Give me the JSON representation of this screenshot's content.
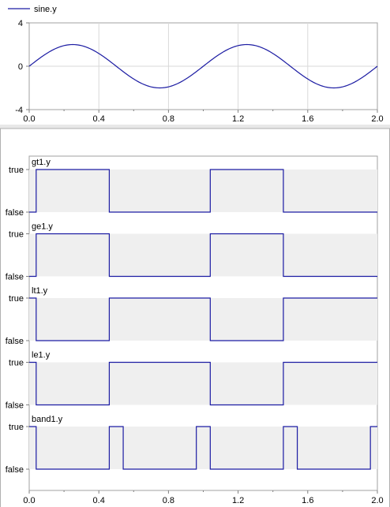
{
  "chart_data": [
    {
      "type": "line",
      "legend": {
        "placement": "top-left",
        "entries": [
          "sine.y"
        ]
      },
      "series": [
        {
          "name": "sine.y",
          "color": "#1c1ca3",
          "function": "2*sin(2*pi*t)"
        }
      ],
      "xlim": [
        0.0,
        2.0
      ],
      "ylim": [
        -4,
        4
      ],
      "xticks": [
        "0.0",
        "0.4",
        "0.8",
        "1.2",
        "1.6",
        "2.0"
      ],
      "yticks": [
        "4",
        "0",
        "-4"
      ],
      "grid": true
    },
    {
      "type": "line",
      "subtype": "boolean-step",
      "xlim": [
        0.0,
        2.0
      ],
      "xticks": [
        "0.0",
        "0.4",
        "0.8",
        "1.2",
        "1.6",
        "2.0"
      ],
      "ytick_true": "true",
      "ytick_false": "false",
      "grid": true,
      "series": [
        {
          "name": "gt1.y",
          "color": "#1c1ca3",
          "steps": [
            [
              0.0,
              0
            ],
            [
              0.04,
              1
            ],
            [
              0.46,
              0
            ],
            [
              1.04,
              1
            ],
            [
              1.46,
              0
            ],
            [
              2.0,
              0
            ]
          ]
        },
        {
          "name": "ge1.y",
          "color": "#1c1ca3",
          "steps": [
            [
              0.0,
              0
            ],
            [
              0.04,
              1
            ],
            [
              0.46,
              0
            ],
            [
              1.04,
              1
            ],
            [
              1.46,
              0
            ],
            [
              2.0,
              0
            ]
          ]
        },
        {
          "name": "lt1.y",
          "color": "#1c1ca3",
          "steps": [
            [
              0.0,
              1
            ],
            [
              0.04,
              0
            ],
            [
              0.46,
              1
            ],
            [
              1.04,
              0
            ],
            [
              1.46,
              1
            ],
            [
              2.0,
              1
            ]
          ]
        },
        {
          "name": "le1.y",
          "color": "#1c1ca3",
          "steps": [
            [
              0.0,
              1
            ],
            [
              0.04,
              0
            ],
            [
              0.46,
              1
            ],
            [
              1.04,
              0
            ],
            [
              1.46,
              1
            ],
            [
              2.0,
              1
            ]
          ]
        },
        {
          "name": "band1.y",
          "color": "#1c1ca3",
          "steps": [
            [
              0.0,
              1
            ],
            [
              0.04,
              0
            ],
            [
              0.46,
              1
            ],
            [
              0.54,
              0
            ],
            [
              0.96,
              1
            ],
            [
              1.04,
              0
            ],
            [
              1.46,
              1
            ],
            [
              1.54,
              0
            ],
            [
              1.96,
              1
            ],
            [
              2.0,
              1
            ]
          ]
        }
      ]
    }
  ]
}
